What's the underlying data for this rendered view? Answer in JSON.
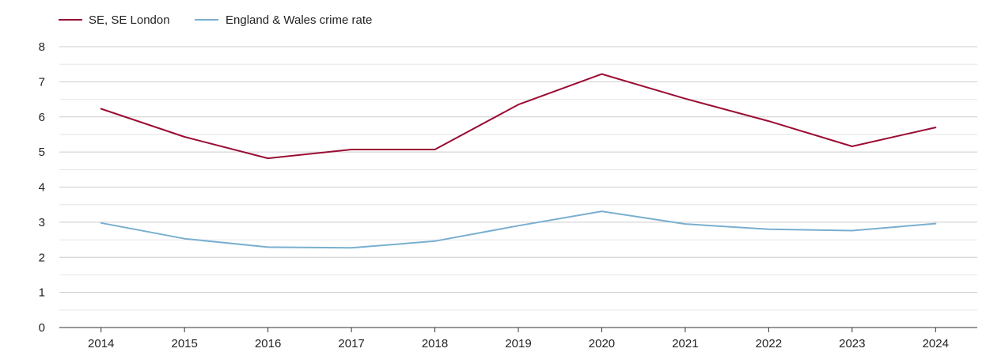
{
  "chart_data": {
    "type": "line",
    "title": "",
    "xlabel": "",
    "ylabel": "",
    "categories": [
      "2014",
      "2015",
      "2016",
      "2017",
      "2018",
      "2019",
      "2020",
      "2021",
      "2022",
      "2023",
      "2024"
    ],
    "ylim": [
      0,
      8
    ],
    "yticks": [
      "0",
      "1",
      "2",
      "3",
      "4",
      "5",
      "6",
      "7",
      "8"
    ],
    "grid": true,
    "legend_position": "top-left",
    "series": [
      {
        "name": "SE, SE London",
        "color": "#9b0d33",
        "values": [
          6.23,
          5.43,
          4.82,
          5.07,
          5.07,
          6.35,
          7.22,
          6.52,
          5.88,
          5.16,
          5.7
        ]
      },
      {
        "name": "England & Wales crime rate",
        "color": "#79afd0",
        "values": [
          2.98,
          2.53,
          2.29,
          2.27,
          2.46,
          2.9,
          3.31,
          2.95,
          2.8,
          2.76,
          2.96
        ]
      }
    ]
  }
}
